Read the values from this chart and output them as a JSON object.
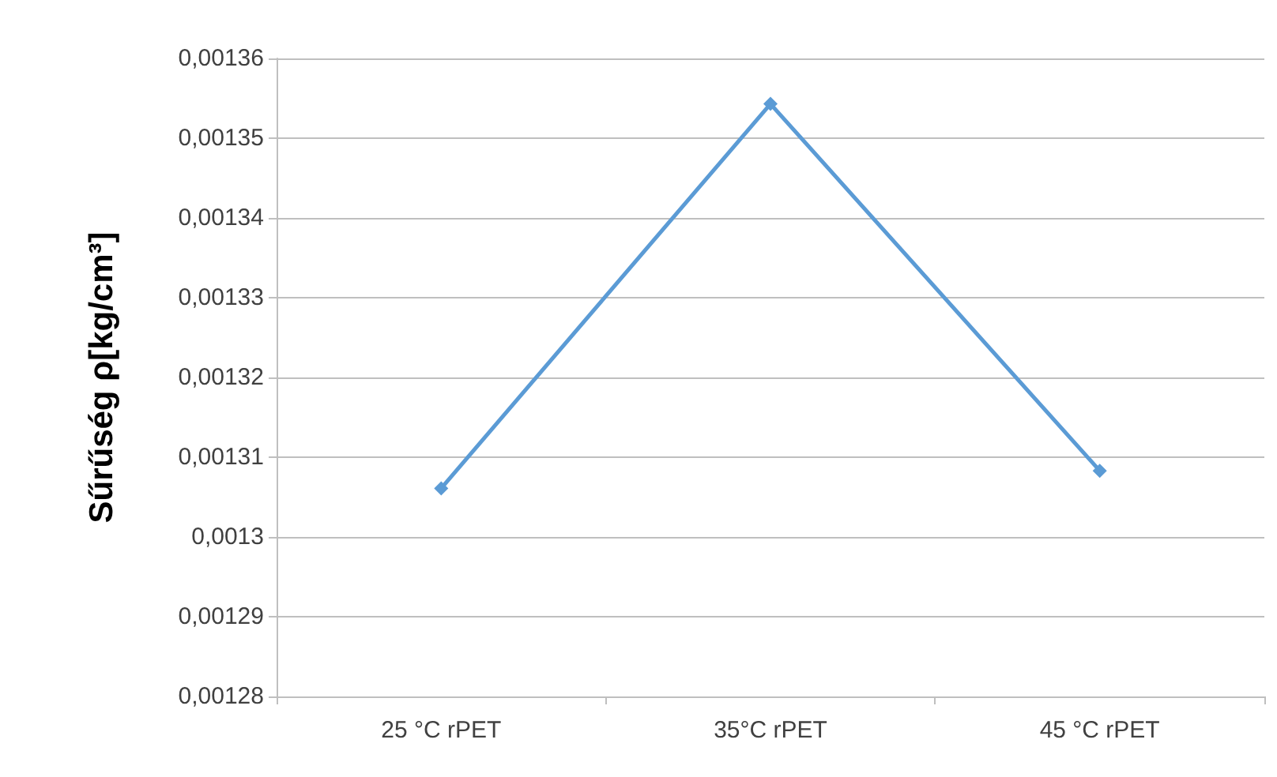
{
  "chart_data": {
    "type": "line",
    "ylabel": "Sűrűség ρ[kg/cm³]",
    "categories": [
      "25 °C rPET",
      "35°C rPET",
      "45 °C rPET"
    ],
    "series": [
      {
        "color": "#5b9bd5",
        "values": [
          0.0013061,
          0.0013543,
          0.0013083
        ]
      }
    ],
    "ylim": [
      0.00128,
      0.00136
    ],
    "yticks": [
      {
        "value": 0.00128,
        "label": "0,00128"
      },
      {
        "value": 0.00129,
        "label": "0,00129"
      },
      {
        "value": 0.0013,
        "label": "0,0013"
      },
      {
        "value": 0.00131,
        "label": "0,00131"
      },
      {
        "value": 0.00132,
        "label": "0,00132"
      },
      {
        "value": 0.00133,
        "label": "0,00133"
      },
      {
        "value": 0.00134,
        "label": "0,00134"
      },
      {
        "value": 0.00135,
        "label": "0,00135"
      },
      {
        "value": 0.00136,
        "label": "0,00136"
      }
    ],
    "grid": "y",
    "marker": "diamond",
    "line_style": "solid"
  }
}
